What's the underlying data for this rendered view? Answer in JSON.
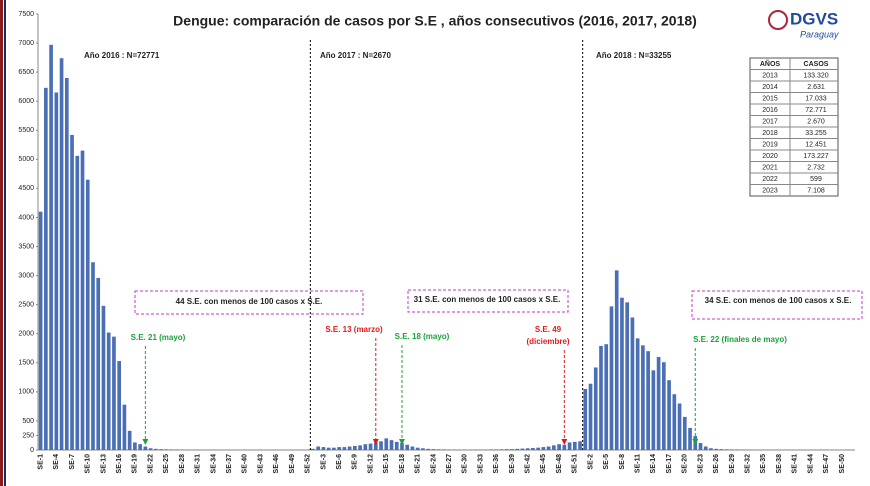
{
  "chart_data": {
    "type": "bar",
    "title": "Dengue: comparación de casos por S.E , años  consecutivos (2016, 2017, 2018)",
    "categories": [
      "SE-1",
      null,
      null,
      "SE-4",
      null,
      null,
      "SE-7",
      null,
      null,
      "SE-10",
      null,
      null,
      "SE-13",
      null,
      null,
      "SE-16",
      null,
      null,
      "SE-19",
      null,
      null,
      "SE-22",
      null,
      null,
      "SE-25",
      null,
      null,
      "SE-28",
      null,
      null,
      "SE-31",
      null,
      null,
      "SE-34",
      null,
      null,
      "SE-37",
      null,
      null,
      "SE-40",
      null,
      null,
      "SE-43",
      null,
      null,
      "SE-46",
      null,
      null,
      "SE-49",
      null,
      null,
      "SE-52",
      null,
      null,
      "SE-3",
      null,
      null,
      "SE-6",
      null,
      null,
      "SE-9",
      null,
      null,
      "SE-12",
      null,
      null,
      "SE-15",
      null,
      null,
      "SE-18",
      null,
      null,
      "SE-21",
      null,
      null,
      "SE-24",
      null,
      null,
      "SE-27",
      null,
      null,
      "SE-30",
      null,
      null,
      "SE-33",
      null,
      null,
      "SE-36",
      null,
      null,
      "SE-39",
      null,
      null,
      "SE-42",
      null,
      null,
      "SE-45",
      null,
      null,
      "SE-48",
      null,
      null,
      "SE-51",
      null,
      null,
      "SE-2",
      null,
      null,
      "SE-5",
      null,
      null,
      "SE-8",
      null,
      null,
      "SE-11",
      null,
      null,
      "SE-14",
      null,
      null,
      "SE-17",
      null,
      null,
      "SE-20",
      null,
      null,
      "SE-23",
      null,
      null,
      "SE-26",
      null,
      null,
      "SE-29",
      null,
      null,
      "SE-32",
      null,
      null,
      "SE-35",
      null,
      null,
      "SE-38",
      null,
      null,
      "SE-41",
      null,
      null,
      "SE-44",
      null,
      null,
      "SE-47",
      null,
      null,
      "SE-50",
      null,
      null
    ],
    "values": [
      4100,
      6230,
      6970,
      6150,
      6740,
      6400,
      5420,
      5060,
      5150,
      4650,
      3230,
      2960,
      2480,
      2020,
      1950,
      1530,
      780,
      330,
      130,
      100,
      60,
      30,
      20,
      15,
      12,
      10,
      10,
      8,
      8,
      6,
      6,
      5,
      5,
      5,
      4,
      4,
      4,
      3,
      3,
      3,
      3,
      3,
      3,
      3,
      3,
      3,
      3,
      4,
      4,
      5,
      5,
      6,
      20,
      60,
      50,
      40,
      40,
      50,
      50,
      60,
      70,
      80,
      100,
      110,
      130,
      150,
      200,
      170,
      140,
      120,
      90,
      60,
      40,
      30,
      20,
      15,
      12,
      10,
      8,
      8,
      6,
      6,
      6,
      6,
      8,
      8,
      10,
      10,
      12,
      15,
      15,
      20,
      25,
      30,
      35,
      40,
      50,
      60,
      80,
      100,
      90,
      130,
      140,
      150,
      1050,
      1140,
      1420,
      1790,
      1820,
      2470,
      3090,
      2620,
      2540,
      2280,
      1920,
      1800,
      1700,
      1370,
      1600,
      1510,
      1200,
      960,
      800,
      570,
      380,
      240,
      120,
      60,
      30,
      20,
      15,
      12,
      10,
      10,
      8,
      8,
      6,
      6,
      5,
      5,
      5,
      4,
      4,
      4,
      4,
      3,
      3,
      3,
      3,
      5,
      5,
      3,
      3,
      3,
      3,
      3
    ],
    "color": "#4a6fb5",
    "ylim": [
      0,
      7500
    ],
    "yticks": [
      0,
      250,
      500,
      1000,
      1500,
      2000,
      2500,
      3000,
      3500,
      4000,
      4500,
      5000,
      5500,
      6000,
      6500,
      7000,
      7500
    ],
    "year_labels": [
      "Año 2016 : N=72771",
      "Año 2017 : N=2670",
      "Año 2018 : N=33255"
    ],
    "annotations": [
      {
        "text": "44 S.E. con menos de 100 casos x S.E.",
        "color": "#222"
      },
      {
        "text": "31 S.E. con menos de 100 casos x S.E.",
        "color": "#222"
      },
      {
        "text": "34 S.E. con menos de 100 casos x S.E.",
        "color": "#222"
      },
      {
        "text": "S.E. 21 (mayo)",
        "color": "#1aa33a"
      },
      {
        "text": "S.E. 13 (marzo)",
        "color": "#e01b1b"
      },
      {
        "text": "S.E. 18 (mayo)",
        "color": "#1aa33a"
      },
      {
        "text": "S.E. 49",
        "color": "#e01b1b"
      },
      {
        "text": "(diciembre)",
        "color": "#e01b1b"
      },
      {
        "text": "S.E. 22 (finales de mayo)",
        "color": "#1aa33a"
      }
    ]
  },
  "table": {
    "header": [
      "AÑOS",
      "CASOS"
    ],
    "rows": [
      [
        "2013",
        "133.320"
      ],
      [
        "2014",
        "2.631"
      ],
      [
        "2015",
        "17.033"
      ],
      [
        "2016",
        "72.771"
      ],
      [
        "2017",
        "2.670"
      ],
      [
        "2018",
        "33.255"
      ],
      [
        "2019",
        "12.451"
      ],
      [
        "2020",
        "173.227"
      ],
      [
        "2021",
        "2.732"
      ],
      [
        "2022",
        "599"
      ],
      [
        "2023",
        "7.108"
      ]
    ]
  },
  "logo": {
    "title": "DGVS",
    "subtitle": "Paraguay"
  }
}
